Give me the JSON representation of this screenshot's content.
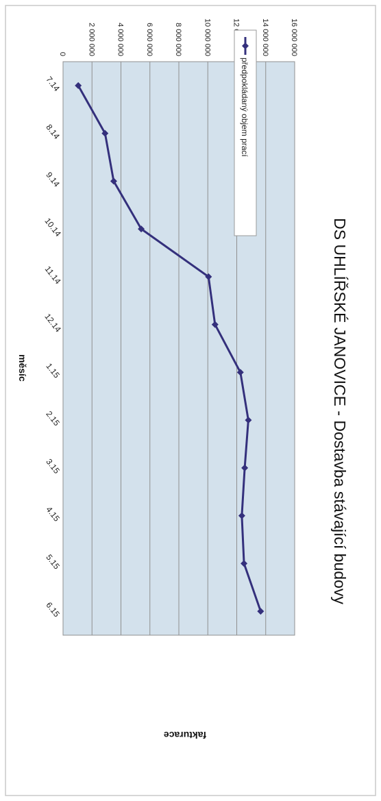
{
  "chart_data": {
    "type": "line",
    "title": "DS UHLÍŘSKÉ JANOVICE - Dostavba stávající budovy",
    "xlabel": "měsíc",
    "ylabel": "fakturace",
    "categories": [
      "7.14",
      "8.14",
      "9.14",
      "10.14",
      "11.14",
      "12.14",
      "1.15",
      "2.15",
      "3.15",
      "4.15",
      "5.15",
      "6.15"
    ],
    "series": [
      {
        "name": "předpokládaný objem prací",
        "values": [
          1050000,
          2900000,
          3500000,
          5400000,
          10050000,
          10500000,
          12250000,
          12800000,
          12550000,
          12350000,
          12500000,
          13650000
        ]
      }
    ],
    "ylim": [
      0,
      16000000
    ],
    "yticks": [
      0,
      2000000,
      4000000,
      6000000,
      8000000,
      10000000,
      12000000,
      14000000,
      16000000
    ],
    "ytick_labels": [
      "0",
      "2 000 000",
      "4 000 000",
      "6 000 000",
      "8 000 000",
      "10 000 000",
      "12 000 000",
      "14 000 000",
      "16 000 000"
    ],
    "grid": true,
    "legend_position": "top-right",
    "orientation": "rotated 90° clockwise",
    "colors": {
      "line": "#34307c",
      "plot_background": "#d3e1ec",
      "grid": "#8f8f8f",
      "border": "#c8c8c8"
    }
  }
}
